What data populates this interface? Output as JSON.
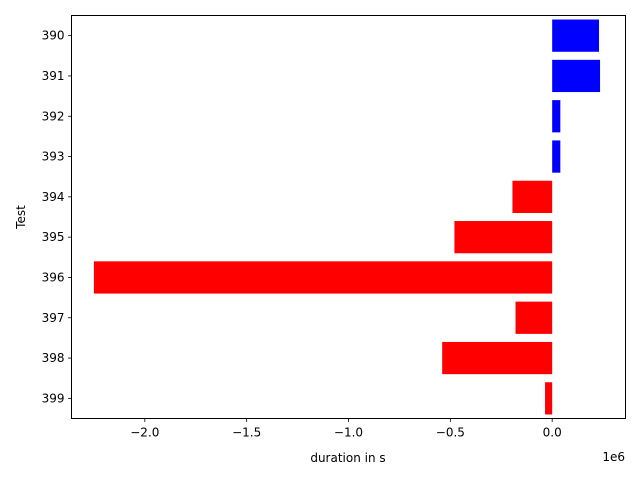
{
  "chart_data": {
    "type": "bar",
    "orientation": "horizontal",
    "title": "",
    "xlabel": "duration in s",
    "ylabel": "Test",
    "x_offset_label": "1e6",
    "xlim": [
      -2360000,
      360000
    ],
    "x_ticks": [
      -2.0,
      -1.5,
      -1.0,
      -0.5,
      0.0
    ],
    "x_tick_labels": [
      "−2.0",
      "−1.5",
      "−1.0",
      "−0.5",
      "0.0"
    ],
    "x_tick_scale": 1000000,
    "grid": false,
    "legend": "none",
    "categories": [
      "390",
      "391",
      "392",
      "393",
      "394",
      "395",
      "396",
      "397",
      "398",
      "399"
    ],
    "values": [
      230000,
      235000,
      40000,
      40000,
      -195000,
      -480000,
      -2250000,
      -180000,
      -540000,
      -35000
    ],
    "colors": {
      "positive": "#0000ff",
      "negative": "#ff0000"
    }
  }
}
